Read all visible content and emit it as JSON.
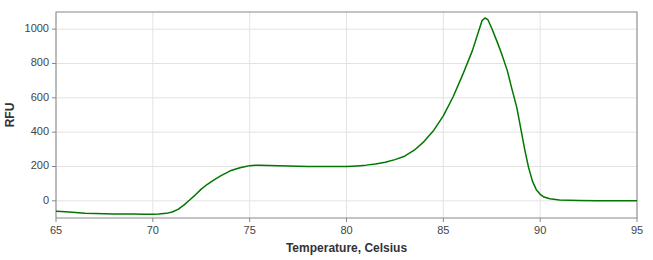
{
  "chart_data": {
    "type": "line",
    "xlabel": "Temperature, Celsius",
    "ylabel": "RFU",
    "xlim": [
      65,
      95
    ],
    "ylim": [
      -100,
      1100
    ],
    "xticks": [
      65,
      70,
      75,
      80,
      85,
      90,
      95
    ],
    "yticks": [
      0,
      200,
      400,
      600,
      800,
      1000
    ],
    "grid": true,
    "color": "#007700",
    "x": [
      65.0,
      65.5,
      66.0,
      66.5,
      67.0,
      67.5,
      68.0,
      68.5,
      69.0,
      69.5,
      70.0,
      70.3,
      70.7,
      71.0,
      71.3,
      71.6,
      71.9,
      72.2,
      72.5,
      72.8,
      73.1,
      73.5,
      74.0,
      74.5,
      74.8,
      75.0,
      75.3,
      75.5,
      76.0,
      76.5,
      77.0,
      77.5,
      78.0,
      78.5,
      79.0,
      79.5,
      80.0,
      80.3,
      80.7,
      81.0,
      81.5,
      82.0,
      82.5,
      83.0,
      83.5,
      84.0,
      84.5,
      85.0,
      85.5,
      86.0,
      86.5,
      87.0,
      87.15,
      87.3,
      87.5,
      87.8,
      88.0,
      88.3,
      88.5,
      88.8,
      89.0,
      89.2,
      89.4,
      89.6,
      89.8,
      90.0,
      90.2,
      90.5,
      91.0,
      91.5,
      92.0,
      93.0,
      94.0,
      95.0
    ],
    "values": [
      -60,
      -63,
      -68,
      -72,
      -74,
      -75,
      -76,
      -77,
      -77,
      -78,
      -78,
      -77,
      -73,
      -65,
      -50,
      -25,
      5,
      35,
      68,
      95,
      118,
      145,
      175,
      193,
      200,
      205,
      207,
      207,
      206,
      204,
      203,
      202,
      200,
      200,
      200,
      200,
      200,
      202,
      205,
      208,
      215,
      225,
      240,
      260,
      295,
      345,
      410,
      495,
      605,
      735,
      875,
      1050,
      1065,
      1055,
      1005,
      920,
      860,
      760,
      670,
      540,
      420,
      300,
      195,
      115,
      65,
      38,
      22,
      12,
      5,
      3,
      2,
      1,
      0,
      0
    ]
  }
}
